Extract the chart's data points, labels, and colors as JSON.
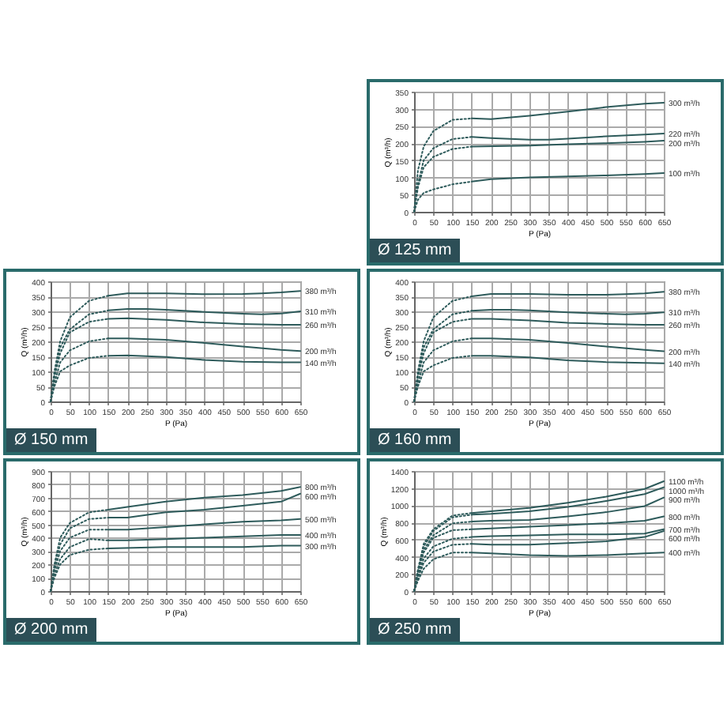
{
  "chart_data": [
    {
      "type": "line",
      "title": "Ø 125 mm",
      "xlabel": "P (Pa)",
      "ylabel": "Q (m³/h)",
      "xlim": [
        0,
        650
      ],
      "ylim": [
        0,
        350
      ],
      "xticks": [
        0,
        50,
        100,
        150,
        200,
        250,
        300,
        350,
        400,
        450,
        500,
        550,
        600,
        650
      ],
      "yticks": [
        0,
        50,
        100,
        150,
        200,
        250,
        300,
        350
      ],
      "grid": true,
      "series": [
        {
          "color": "#2e5b5b",
          "line_style": "dotted",
          "x": [
            0,
            10,
            25,
            50,
            100,
            150
          ],
          "values": [
            0,
            120,
            190,
            235,
            268,
            272
          ]
        },
        {
          "name": "300 m³/h",
          "color": "#2e5b5b",
          "line_style": "solid",
          "x": [
            150,
            200,
            300,
            400,
            500,
            600,
            650
          ],
          "values": [
            272,
            270,
            280,
            292,
            305,
            315,
            318
          ]
        },
        {
          "color": "#2e5b5b",
          "line_style": "dotted",
          "x": [
            0,
            10,
            25,
            50,
            100,
            150
          ],
          "values": [
            0,
            80,
            150,
            185,
            212,
            218
          ]
        },
        {
          "name": "220 m³/h",
          "color": "#2e5b5b",
          "line_style": "solid",
          "x": [
            150,
            200,
            300,
            350,
            400,
            500,
            600,
            650
          ],
          "values": [
            218,
            215,
            210,
            210,
            213,
            220,
            225,
            228
          ]
        },
        {
          "color": "#2e5b5b",
          "line_style": "dotted",
          "x": [
            0,
            10,
            25,
            50,
            100,
            150
          ],
          "values": [
            0,
            70,
            130,
            160,
            183,
            190
          ]
        },
        {
          "name": "200 m³/h",
          "color": "#2e5b5b",
          "line_style": "solid",
          "x": [
            150,
            300,
            400,
            500,
            600,
            650
          ],
          "values": [
            190,
            193,
            197,
            200,
            204,
            207
          ]
        },
        {
          "color": "#2e5b5b",
          "line_style": "dotted",
          "x": [
            0,
            10,
            25,
            50,
            100,
            150
          ],
          "values": [
            0,
            35,
            55,
            65,
            80,
            88
          ]
        },
        {
          "name": "100 m³/h",
          "color": "#2e5b5b",
          "line_style": "solid",
          "x": [
            150,
            200,
            300,
            400,
            500,
            600,
            650
          ],
          "values": [
            88,
            95,
            100,
            103,
            106,
            110,
            113
          ]
        }
      ]
    },
    {
      "type": "line",
      "title": "Ø 150 mm",
      "xlabel": "P (Pa)",
      "ylabel": "Q (m³/h)",
      "xlim": [
        0,
        650
      ],
      "ylim": [
        0,
        400
      ],
      "xticks": [
        0,
        50,
        100,
        150,
        200,
        250,
        300,
        350,
        400,
        450,
        500,
        550,
        600,
        650
      ],
      "yticks": [
        0,
        50,
        100,
        150,
        200,
        250,
        300,
        350,
        400
      ],
      "grid": true,
      "series": [
        {
          "color": "#2e5b5b",
          "line_style": "dotted",
          "x": [
            0,
            10,
            25,
            50,
            100,
            150
          ],
          "values": [
            0,
            100,
            200,
            280,
            335,
            352
          ]
        },
        {
          "name": "380 m³/h",
          "color": "#2e5b5b",
          "line_style": "solid",
          "x": [
            150,
            200,
            300,
            400,
            500,
            550,
            600,
            650
          ],
          "values": [
            352,
            360,
            360,
            357,
            358,
            360,
            363,
            368
          ]
        },
        {
          "color": "#2e5b5b",
          "line_style": "dotted",
          "x": [
            0,
            10,
            25,
            50,
            100,
            150
          ],
          "values": [
            0,
            90,
            180,
            240,
            290,
            303
          ]
        },
        {
          "name": "310 m³/h",
          "color": "#2e5b5b",
          "line_style": "solid",
          "x": [
            150,
            200,
            250,
            300,
            400,
            500,
            550,
            600,
            650
          ],
          "values": [
            303,
            308,
            308,
            305,
            298,
            292,
            290,
            293,
            300
          ]
        },
        {
          "color": "#2e5b5b",
          "line_style": "dotted",
          "x": [
            0,
            10,
            25,
            50,
            100,
            150
          ],
          "values": [
            0,
            80,
            160,
            230,
            265,
            275
          ]
        },
        {
          "name": "260 m³/h",
          "color": "#2e5b5b",
          "line_style": "solid",
          "x": [
            150,
            200,
            300,
            400,
            500,
            600,
            650
          ],
          "values": [
            275,
            277,
            272,
            263,
            258,
            255,
            255
          ]
        },
        {
          "color": "#2e5b5b",
          "line_style": "dotted",
          "x": [
            0,
            10,
            25,
            50,
            100,
            150
          ],
          "values": [
            0,
            60,
            130,
            170,
            200,
            210
          ]
        },
        {
          "name": "200 m³/h",
          "color": "#2e5b5b",
          "line_style": "solid",
          "x": [
            150,
            200,
            300,
            400,
            500,
            600,
            650
          ],
          "values": [
            210,
            210,
            205,
            195,
            183,
            172,
            168
          ]
        },
        {
          "color": "#2e5b5b",
          "line_style": "dotted",
          "x": [
            0,
            10,
            25,
            50,
            100,
            150
          ],
          "values": [
            0,
            50,
            100,
            120,
            145,
            152
          ]
        },
        {
          "name": "140 m³/h",
          "color": "#2e5b5b",
          "line_style": "solid",
          "x": [
            150,
            200,
            300,
            400,
            500,
            600,
            650
          ],
          "values": [
            152,
            153,
            148,
            138,
            132,
            130,
            130
          ]
        }
      ]
    },
    {
      "type": "line",
      "title": "Ø 160 mm",
      "xlabel": "P (Pa)",
      "ylabel": "Q (m³/h)",
      "xlim": [
        0,
        650
      ],
      "ylim": [
        0,
        400
      ],
      "xticks": [
        0,
        50,
        100,
        150,
        200,
        250,
        300,
        350,
        400,
        450,
        500,
        550,
        600,
        650
      ],
      "yticks": [
        0,
        50,
        100,
        150,
        200,
        250,
        300,
        350,
        400
      ],
      "grid": true,
      "series": [
        {
          "color": "#2e5b5b",
          "line_style": "dotted",
          "x": [
            0,
            10,
            25,
            50,
            100,
            150
          ],
          "values": [
            0,
            100,
            200,
            280,
            335,
            350
          ]
        },
        {
          "name": "380 m³/h",
          "color": "#2e5b5b",
          "line_style": "solid",
          "x": [
            150,
            200,
            300,
            400,
            500,
            550,
            600,
            650
          ],
          "values": [
            350,
            358,
            358,
            355,
            355,
            357,
            360,
            365
          ]
        },
        {
          "color": "#2e5b5b",
          "line_style": "dotted",
          "x": [
            0,
            10,
            25,
            50,
            100,
            150
          ],
          "values": [
            0,
            90,
            180,
            240,
            290,
            302
          ]
        },
        {
          "name": "310 m³/h",
          "color": "#2e5b5b",
          "line_style": "solid",
          "x": [
            150,
            200,
            250,
            300,
            400,
            500,
            550,
            600,
            650
          ],
          "values": [
            302,
            305,
            305,
            303,
            297,
            292,
            290,
            292,
            297
          ]
        },
        {
          "color": "#2e5b5b",
          "line_style": "dotted",
          "x": [
            0,
            10,
            25,
            50,
            100,
            150
          ],
          "values": [
            0,
            80,
            160,
            230,
            265,
            275
          ]
        },
        {
          "name": "260 m³/h",
          "color": "#2e5b5b",
          "line_style": "solid",
          "x": [
            150,
            200,
            300,
            400,
            500,
            600,
            650
          ],
          "values": [
            275,
            275,
            270,
            262,
            258,
            255,
            255
          ]
        },
        {
          "color": "#2e5b5b",
          "line_style": "dotted",
          "x": [
            0,
            10,
            25,
            50,
            100,
            150
          ],
          "values": [
            0,
            60,
            130,
            170,
            200,
            210
          ]
        },
        {
          "name": "200 m³/h",
          "color": "#2e5b5b",
          "line_style": "solid",
          "x": [
            150,
            200,
            300,
            400,
            500,
            600,
            650
          ],
          "values": [
            210,
            210,
            205,
            195,
            183,
            172,
            167
          ]
        },
        {
          "color": "#2e5b5b",
          "line_style": "dotted",
          "x": [
            0,
            10,
            25,
            50,
            100,
            150
          ],
          "values": [
            0,
            50,
            100,
            120,
            145,
            152
          ]
        },
        {
          "name": "140 m³/h",
          "color": "#2e5b5b",
          "line_style": "solid",
          "x": [
            150,
            200,
            300,
            400,
            500,
            600,
            650
          ],
          "values": [
            152,
            152,
            147,
            137,
            131,
            128,
            127
          ]
        }
      ]
    },
    {
      "type": "line",
      "title": "Ø 200 mm",
      "xlabel": "P (Pa)",
      "ylabel": "Q (m³/h)",
      "xlim": [
        0,
        650
      ],
      "ylim": [
        0,
        900
      ],
      "xticks": [
        0,
        50,
        100,
        150,
        200,
        250,
        300,
        350,
        400,
        450,
        500,
        550,
        600,
        650
      ],
      "yticks": [
        0,
        100,
        200,
        300,
        400,
        500,
        600,
        700,
        800,
        900
      ],
      "grid": true,
      "series": [
        {
          "color": "#2e5b5b",
          "line_style": "dotted",
          "x": [
            0,
            10,
            25,
            50,
            100,
            150
          ],
          "values": [
            0,
            200,
            400,
            510,
            590,
            610
          ]
        },
        {
          "name": "800 m³/h",
          "color": "#2e5b5b",
          "line_style": "solid",
          "x": [
            150,
            200,
            300,
            400,
            500,
            600,
            650
          ],
          "values": [
            610,
            630,
            670,
            700,
            720,
            750,
            780
          ]
        },
        {
          "color": "#2e5b5b",
          "line_style": "dotted",
          "x": [
            0,
            10,
            25,
            50,
            100,
            150
          ],
          "values": [
            0,
            180,
            350,
            470,
            540,
            550
          ]
        },
        {
          "name": "600 m³/h",
          "color": "#2e5b5b",
          "line_style": "solid",
          "x": [
            150,
            200,
            300,
            400,
            500,
            600,
            650
          ],
          "values": [
            550,
            550,
            590,
            610,
            640,
            670,
            730
          ]
        },
        {
          "color": "#2e5b5b",
          "line_style": "dotted",
          "x": [
            0,
            10,
            25,
            50,
            100,
            150
          ],
          "values": [
            0,
            150,
            300,
            400,
            460,
            460
          ]
        },
        {
          "name": "500 m³/h",
          "color": "#2e5b5b",
          "line_style": "solid",
          "x": [
            150,
            200,
            300,
            400,
            500,
            600,
            650
          ],
          "values": [
            460,
            460,
            480,
            500,
            520,
            530,
            540
          ]
        },
        {
          "color": "#2e5b5b",
          "line_style": "dotted",
          "x": [
            0,
            10,
            25,
            50,
            100,
            150
          ],
          "values": [
            0,
            120,
            240,
            330,
            390,
            380
          ]
        },
        {
          "name": "400 m³/h",
          "color": "#2e5b5b",
          "line_style": "solid",
          "x": [
            150,
            200,
            300,
            400,
            500,
            600,
            650
          ],
          "values": [
            380,
            380,
            390,
            400,
            410,
            420,
            420
          ]
        },
        {
          "color": "#2e5b5b",
          "line_style": "dotted",
          "x": [
            0,
            10,
            25,
            50,
            100,
            150
          ],
          "values": [
            0,
            100,
            200,
            270,
            310,
            320
          ]
        },
        {
          "name": "300 m³/h",
          "color": "#2e5b5b",
          "line_style": "solid",
          "x": [
            150,
            300,
            400,
            500,
            600,
            650
          ],
          "values": [
            320,
            330,
            330,
            330,
            340,
            340
          ]
        }
      ]
    },
    {
      "type": "line",
      "title": "Ø 250 mm",
      "xlabel": "P (Pa)",
      "ylabel": "Q (m³/h)",
      "xlim": [
        0,
        650
      ],
      "ylim": [
        0,
        1400
      ],
      "xticks": [
        0,
        50,
        100,
        150,
        200,
        250,
        300,
        350,
        400,
        450,
        500,
        550,
        600,
        650
      ],
      "yticks": [
        0,
        200,
        400,
        600,
        800,
        1000,
        1200,
        1400
      ],
      "grid": true,
      "series": [
        {
          "color": "#2e5b5b",
          "line_style": "dotted",
          "x": [
            0,
            10,
            25,
            50,
            100,
            150
          ],
          "values": [
            0,
            250,
            550,
            720,
            880,
            910
          ]
        },
        {
          "name": "1100 m³/h",
          "color": "#2e5b5b",
          "line_style": "solid",
          "x": [
            150,
            200,
            300,
            400,
            500,
            600,
            650
          ],
          "values": [
            910,
            930,
            970,
            1030,
            1100,
            1190,
            1280
          ]
        },
        {
          "color": "#2e5b5b",
          "line_style": "dotted",
          "x": [
            0,
            10,
            25,
            50,
            100,
            150
          ],
          "values": [
            0,
            240,
            520,
            700,
            860,
            890
          ]
        },
        {
          "name": "1000 m³/h",
          "color": "#2e5b5b",
          "line_style": "solid",
          "x": [
            150,
            200,
            300,
            400,
            500,
            600,
            650
          ],
          "values": [
            890,
            900,
            930,
            980,
            1050,
            1130,
            1210
          ]
        },
        {
          "color": "#2e5b5b",
          "line_style": "dotted",
          "x": [
            0,
            10,
            25,
            50,
            100,
            150
          ],
          "values": [
            0,
            220,
            480,
            650,
            790,
            810
          ]
        },
        {
          "name": "900 m³/h",
          "color": "#2e5b5b",
          "line_style": "solid",
          "x": [
            150,
            200,
            300,
            400,
            500,
            600,
            650
          ],
          "values": [
            810,
            820,
            830,
            870,
            920,
            990,
            1090
          ]
        },
        {
          "color": "#2e5b5b",
          "line_style": "dotted",
          "x": [
            0,
            10,
            25,
            50,
            100,
            150
          ],
          "values": [
            0,
            200,
            450,
            620,
            710,
            720
          ]
        },
        {
          "name": "800 m³/h",
          "color": "#2e5b5b",
          "line_style": "solid",
          "x": [
            150,
            200,
            300,
            400,
            500,
            600,
            650
          ],
          "values": [
            720,
            730,
            750,
            770,
            790,
            820,
            870
          ]
        },
        {
          "color": "#2e5b5b",
          "line_style": "dotted",
          "x": [
            0,
            10,
            25,
            50,
            100,
            150
          ],
          "values": [
            0,
            170,
            380,
            520,
            610,
            630
          ]
        },
        {
          "name": "700 m³/h",
          "color": "#2e5b5b",
          "line_style": "solid",
          "x": [
            150,
            200,
            300,
            400,
            500,
            600,
            650
          ],
          "values": [
            630,
            640,
            650,
            660,
            660,
            670,
            720
          ]
        },
        {
          "color": "#2e5b5b",
          "line_style": "dotted",
          "x": [
            0,
            10,
            25,
            50,
            100,
            150
          ],
          "values": [
            0,
            150,
            330,
            460,
            540,
            550
          ]
        },
        {
          "name": "600 m³/h",
          "color": "#2e5b5b",
          "line_style": "solid",
          "x": [
            150,
            200,
            300,
            400,
            500,
            600,
            650
          ],
          "values": [
            550,
            540,
            540,
            560,
            580,
            630,
            700
          ]
        },
        {
          "color": "#2e5b5b",
          "line_style": "dotted",
          "x": [
            0,
            10,
            25,
            50,
            100,
            150
          ],
          "values": [
            0,
            120,
            260,
            370,
            450,
            450
          ]
        },
        {
          "name": "400 m³/h",
          "color": "#2e5b5b",
          "line_style": "solid",
          "x": [
            150,
            200,
            300,
            400,
            500,
            600,
            650
          ],
          "values": [
            450,
            440,
            420,
            410,
            420,
            440,
            450
          ]
        }
      ]
    }
  ]
}
